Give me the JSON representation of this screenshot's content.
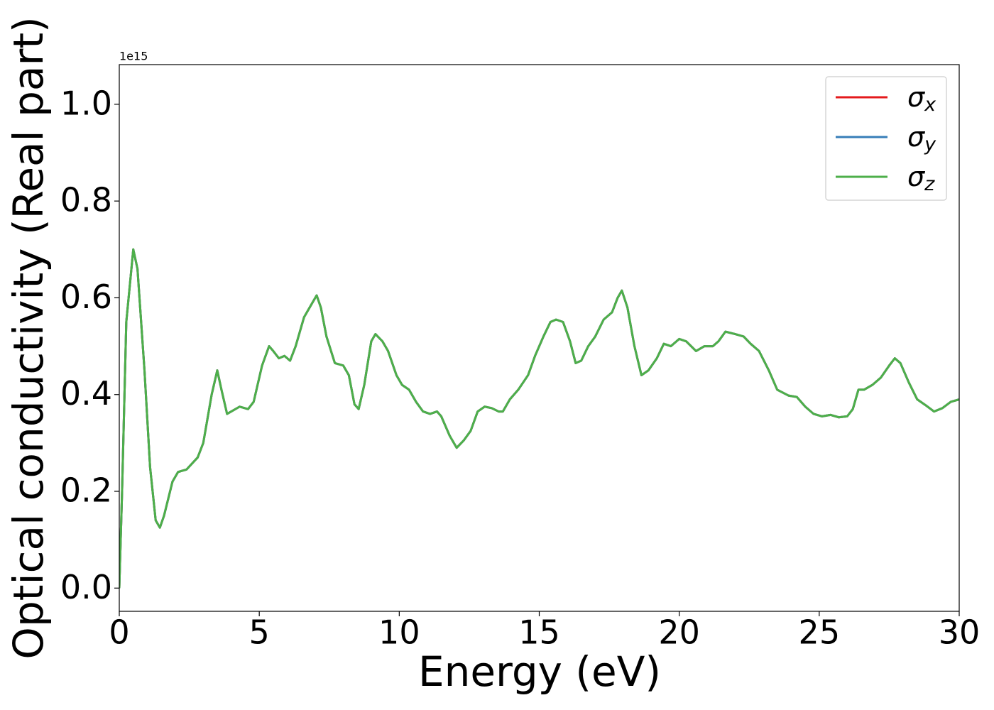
{
  "chart_data": {
    "type": "line",
    "x_label": "Energy (eV)",
    "y_label": "Optical conductivity (Real part)",
    "y_offset_text": "1e15",
    "xlim": [
      0,
      30
    ],
    "xticks": [
      0,
      5,
      10,
      15,
      20,
      25,
      30
    ],
    "ylim": [
      -0.048,
      1.082
    ],
    "yticks": [
      {
        "value": 0,
        "label": "0.0"
      },
      0.2,
      0.4,
      0.6,
      0.8,
      {
        "value": 1,
        "label": "1.0"
      }
    ],
    "legend_position": "upper right",
    "x": [
      0,
      0.1,
      0.25,
      0.5,
      0.65,
      0.9,
      1.1,
      1.3,
      1.45,
      1.6,
      1.9,
      2.1,
      2.4,
      2.8,
      3.0,
      3.3,
      3.5,
      3.65,
      3.85,
      4.0,
      4.3,
      4.6,
      4.8,
      5.1,
      5.35,
      5.5,
      5.7,
      5.9,
      6.1,
      6.3,
      6.6,
      6.85,
      7.05,
      7.2,
      7.4,
      7.7,
      8.0,
      8.2,
      8.4,
      8.55,
      8.75,
      9.0,
      9.15,
      9.4,
      9.6,
      9.9,
      10.1,
      10.35,
      10.6,
      10.85,
      11.1,
      11.35,
      11.5,
      11.8,
      12.05,
      12.3,
      12.55,
      12.8,
      13.05,
      13.3,
      13.55,
      13.7,
      13.95,
      14.25,
      14.6,
      14.85,
      15.15,
      15.4,
      15.6,
      15.85,
      16.1,
      16.3,
      16.5,
      16.75,
      17.0,
      17.3,
      17.6,
      17.8,
      17.95,
      18.15,
      18.4,
      18.65,
      18.9,
      19.2,
      19.45,
      19.7,
      20.0,
      20.25,
      20.6,
      20.9,
      21.2,
      21.4,
      21.65,
      22.0,
      22.3,
      22.55,
      22.85,
      23.2,
      23.5,
      23.9,
      24.2,
      24.5,
      24.8,
      25.1,
      25.4,
      25.7,
      26.0,
      26.2,
      26.4,
      26.6,
      26.9,
      27.2,
      27.5,
      27.7,
      27.9,
      28.2,
      28.5,
      28.8,
      29.1,
      29.4,
      29.7,
      30.0
    ],
    "series": [
      {
        "name": "σx",
        "color": "#e41a1c",
        "values": [
          0,
          0.2,
          0.55,
          0.7,
          0.66,
          0.45,
          0.25,
          0.14,
          0.125,
          0.15,
          0.22,
          0.24,
          0.245,
          0.27,
          0.3,
          0.4,
          0.45,
          0.41,
          0.36,
          0.365,
          0.375,
          0.37,
          0.385,
          0.46,
          0.5,
          0.49,
          0.475,
          0.48,
          0.47,
          0.5,
          0.56,
          0.585,
          0.605,
          0.58,
          0.52,
          0.465,
          0.46,
          0.44,
          0.38,
          0.37,
          0.42,
          0.51,
          0.525,
          0.51,
          0.49,
          0.44,
          0.42,
          0.41,
          0.385,
          0.365,
          0.36,
          0.365,
          0.355,
          0.315,
          0.29,
          0.305,
          0.325,
          0.365,
          0.375,
          0.372,
          0.365,
          0.365,
          0.39,
          0.41,
          0.44,
          0.48,
          0.52,
          0.55,
          0.555,
          0.55,
          0.51,
          0.465,
          0.47,
          0.5,
          0.52,
          0.555,
          0.57,
          0.6,
          0.615,
          0.58,
          0.5,
          0.44,
          0.45,
          0.475,
          0.505,
          0.5,
          0.515,
          0.51,
          0.49,
          0.5,
          0.5,
          0.51,
          0.53,
          0.525,
          0.52,
          0.505,
          0.49,
          0.45,
          0.41,
          0.398,
          0.395,
          0.375,
          0.36,
          0.355,
          0.358,
          0.353,
          0.355,
          0.37,
          0.41,
          0.41,
          0.42,
          0.435,
          0.46,
          0.475,
          0.465,
          0.425,
          0.39,
          0.378,
          0.365,
          0.372,
          0.385,
          0.39
        ]
      },
      {
        "name": "σy",
        "color": "#377eb8",
        "values": [
          0,
          0.2,
          0.55,
          0.7,
          0.66,
          0.45,
          0.25,
          0.14,
          0.125,
          0.15,
          0.22,
          0.24,
          0.245,
          0.27,
          0.3,
          0.4,
          0.45,
          0.41,
          0.36,
          0.365,
          0.375,
          0.37,
          0.385,
          0.46,
          0.5,
          0.49,
          0.475,
          0.48,
          0.47,
          0.5,
          0.56,
          0.585,
          0.605,
          0.58,
          0.52,
          0.465,
          0.46,
          0.44,
          0.38,
          0.37,
          0.42,
          0.51,
          0.525,
          0.51,
          0.49,
          0.44,
          0.42,
          0.41,
          0.385,
          0.365,
          0.36,
          0.365,
          0.355,
          0.315,
          0.29,
          0.305,
          0.325,
          0.365,
          0.375,
          0.372,
          0.365,
          0.365,
          0.39,
          0.41,
          0.44,
          0.48,
          0.52,
          0.55,
          0.555,
          0.55,
          0.51,
          0.465,
          0.47,
          0.5,
          0.52,
          0.555,
          0.57,
          0.6,
          0.615,
          0.58,
          0.5,
          0.44,
          0.45,
          0.475,
          0.505,
          0.5,
          0.515,
          0.51,
          0.49,
          0.5,
          0.5,
          0.51,
          0.53,
          0.525,
          0.52,
          0.505,
          0.49,
          0.45,
          0.41,
          0.398,
          0.395,
          0.375,
          0.36,
          0.355,
          0.358,
          0.353,
          0.355,
          0.37,
          0.41,
          0.41,
          0.42,
          0.435,
          0.46,
          0.475,
          0.465,
          0.425,
          0.39,
          0.378,
          0.365,
          0.372,
          0.385,
          0.39
        ]
      },
      {
        "name": "σz",
        "color": "#4daf4a",
        "values": [
          0,
          0.2,
          0.55,
          0.7,
          0.66,
          0.45,
          0.25,
          0.14,
          0.125,
          0.15,
          0.22,
          0.24,
          0.245,
          0.27,
          0.3,
          0.4,
          0.45,
          0.41,
          0.36,
          0.365,
          0.375,
          0.37,
          0.385,
          0.46,
          0.5,
          0.49,
          0.475,
          0.48,
          0.47,
          0.5,
          0.56,
          0.585,
          0.605,
          0.58,
          0.52,
          0.465,
          0.46,
          0.44,
          0.38,
          0.37,
          0.42,
          0.51,
          0.525,
          0.51,
          0.49,
          0.44,
          0.42,
          0.41,
          0.385,
          0.365,
          0.36,
          0.365,
          0.355,
          0.315,
          0.29,
          0.305,
          0.325,
          0.365,
          0.375,
          0.372,
          0.365,
          0.365,
          0.39,
          0.41,
          0.44,
          0.48,
          0.52,
          0.55,
          0.555,
          0.55,
          0.51,
          0.465,
          0.47,
          0.5,
          0.52,
          0.555,
          0.57,
          0.6,
          0.615,
          0.58,
          0.5,
          0.44,
          0.45,
          0.475,
          0.505,
          0.5,
          0.515,
          0.51,
          0.49,
          0.5,
          0.5,
          0.51,
          0.53,
          0.525,
          0.52,
          0.505,
          0.49,
          0.45,
          0.41,
          0.398,
          0.395,
          0.375,
          0.36,
          0.355,
          0.358,
          0.353,
          0.355,
          0.37,
          0.41,
          0.41,
          0.42,
          0.435,
          0.46,
          0.475,
          0.465,
          0.425,
          0.39,
          0.378,
          0.365,
          0.372,
          0.385,
          0.39
        ]
      }
    ]
  }
}
